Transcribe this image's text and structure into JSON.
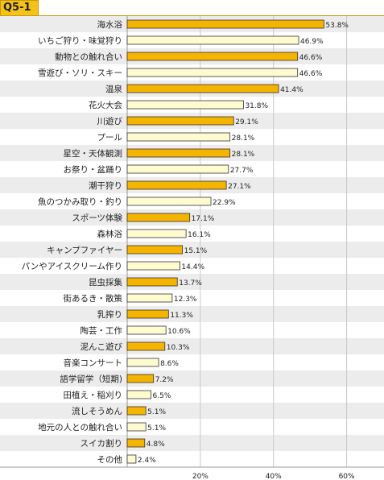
{
  "title": "Q5-1",
  "chart_data": {
    "type": "bar",
    "orientation": "horizontal",
    "categories": [
      "海水浴",
      "いちご狩り・味覚狩り",
      "動物との触れ合い",
      "雪遊び・ソリ・スキー",
      "温泉",
      "花火大会",
      "川遊び",
      "プール",
      "星空・天体観測",
      "お祭り・盆踊り",
      "潮干狩り",
      "魚のつかみ取り・釣り",
      "スポーツ体験",
      "森林浴",
      "キャンプファイヤー",
      "パンやアイスクリーム作り",
      "昆虫採集",
      "街あるき・散策",
      "乳搾り",
      "陶芸・工作",
      "泥んこ遊び",
      "音楽コンサート",
      "語学留学（短期)",
      "田植え・稲刈り",
      "流しそうめん",
      "地元の人との触れ合い",
      "スイカ割り",
      "その他"
    ],
    "values": [
      53.8,
      46.9,
      46.6,
      46.6,
      41.4,
      31.8,
      29.1,
      28.1,
      28.1,
      27.7,
      27.1,
      22.9,
      17.1,
      16.1,
      15.1,
      14.4,
      13.7,
      12.3,
      11.3,
      10.6,
      10.3,
      8.6,
      7.2,
      6.5,
      5.1,
      5.1,
      4.8,
      2.4
    ],
    "value_labels": [
      "53.8%",
      "46.9%",
      "46.6%",
      "46.6%",
      "41.4%",
      "31.8%",
      "29.1%",
      "28.1%",
      "28.1%",
      "27.7%",
      "27.1%",
      "22.9%",
      "17.1%",
      "16.1%",
      "15.1%",
      "14.4%",
      "13.7%",
      "12.3%",
      "11.3%",
      "10.6%",
      "10.3%",
      "8.6%",
      "7.2%",
      "6.5%",
      "5.1%",
      "5.1%",
      "4.8%",
      "2.4%"
    ],
    "x_ticks": [
      "20%",
      "40%",
      "60%"
    ],
    "x_tick_values": [
      20,
      40,
      60
    ],
    "xlim": [
      0,
      70
    ],
    "colors": {
      "bar_a": "#f5b400",
      "bar_b": "#fffbd0",
      "bar_border": "#333333",
      "row_shade": "#ececec",
      "grid": "#c8c8c8"
    }
  }
}
